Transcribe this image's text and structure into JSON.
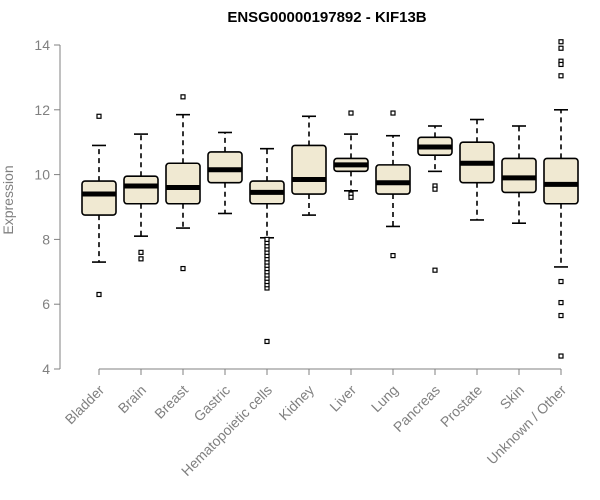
{
  "chart_data": {
    "type": "box",
    "title": "ENSG00000197892 - KIF13B",
    "ylabel": "Expression",
    "xlabel": "",
    "ylim": [
      4,
      14
    ],
    "yticks": [
      4,
      6,
      8,
      10,
      12,
      14
    ],
    "box_fill": "#f0e9d2",
    "grid": false,
    "categories": [
      "Bladder",
      "Brain",
      "Breast",
      "Gastric",
      "Hematopoietic cells",
      "Kidney",
      "Liver",
      "Lung",
      "Pancreas",
      "Prostate",
      "Skin",
      "Unknown / Other"
    ],
    "boxes": [
      {
        "category": "Bladder",
        "whisker_low": 7.3,
        "q1": 8.75,
        "median": 9.4,
        "q3": 9.8,
        "whisker_high": 10.9,
        "outliers": [
          6.3,
          11.8
        ]
      },
      {
        "category": "Brain",
        "whisker_low": 8.1,
        "q1": 9.1,
        "median": 9.65,
        "q3": 9.95,
        "whisker_high": 11.25,
        "outliers": [
          7.6,
          7.4
        ]
      },
      {
        "category": "Breast",
        "whisker_low": 8.35,
        "q1": 9.1,
        "median": 9.6,
        "q3": 10.35,
        "whisker_high": 11.85,
        "outliers": [
          12.4,
          7.1
        ]
      },
      {
        "category": "Gastric",
        "whisker_low": 8.8,
        "q1": 9.75,
        "median": 10.15,
        "q3": 10.7,
        "whisker_high": 11.3,
        "outliers": []
      },
      {
        "category": "Hematopoietic cells",
        "whisker_low": 8.05,
        "q1": 9.1,
        "median": 9.45,
        "q3": 9.8,
        "whisker_high": 10.8,
        "outliers": [
          4.85,
          6.5,
          6.6,
          6.7,
          6.8,
          6.9,
          7.0,
          7.1,
          7.2,
          7.3,
          7.4,
          7.5,
          7.6,
          7.7,
          7.8,
          7.9,
          8.0
        ]
      },
      {
        "category": "Kidney",
        "whisker_low": 8.75,
        "q1": 9.4,
        "median": 9.85,
        "q3": 10.9,
        "whisker_high": 11.8,
        "outliers": []
      },
      {
        "category": "Liver",
        "whisker_low": 9.5,
        "q1": 10.1,
        "median": 10.3,
        "q3": 10.5,
        "whisker_high": 11.25,
        "outliers": [
          11.9,
          9.4,
          9.3
        ]
      },
      {
        "category": "Lung",
        "whisker_low": 8.4,
        "q1": 9.4,
        "median": 9.75,
        "q3": 10.3,
        "whisker_high": 11.2,
        "outliers": [
          11.9,
          7.5
        ]
      },
      {
        "category": "Pancreas",
        "whisker_low": 10.1,
        "q1": 10.6,
        "median": 10.85,
        "q3": 11.15,
        "whisker_high": 11.5,
        "outliers": [
          9.65,
          9.55,
          7.05
        ]
      },
      {
        "category": "Prostate",
        "whisker_low": 8.6,
        "q1": 9.75,
        "median": 10.35,
        "q3": 11.0,
        "whisker_high": 11.7,
        "outliers": []
      },
      {
        "category": "Skin",
        "whisker_low": 8.5,
        "q1": 9.45,
        "median": 9.9,
        "q3": 10.5,
        "whisker_high": 11.5,
        "outliers": []
      },
      {
        "category": "Unknown / Other",
        "whisker_low": 7.15,
        "q1": 9.1,
        "median": 9.7,
        "q3": 10.5,
        "whisker_high": 12.0,
        "outliers": [
          14.1,
          13.9,
          13.5,
          13.4,
          13.05,
          6.7,
          6.05,
          5.65,
          4.4
        ]
      }
    ]
  }
}
